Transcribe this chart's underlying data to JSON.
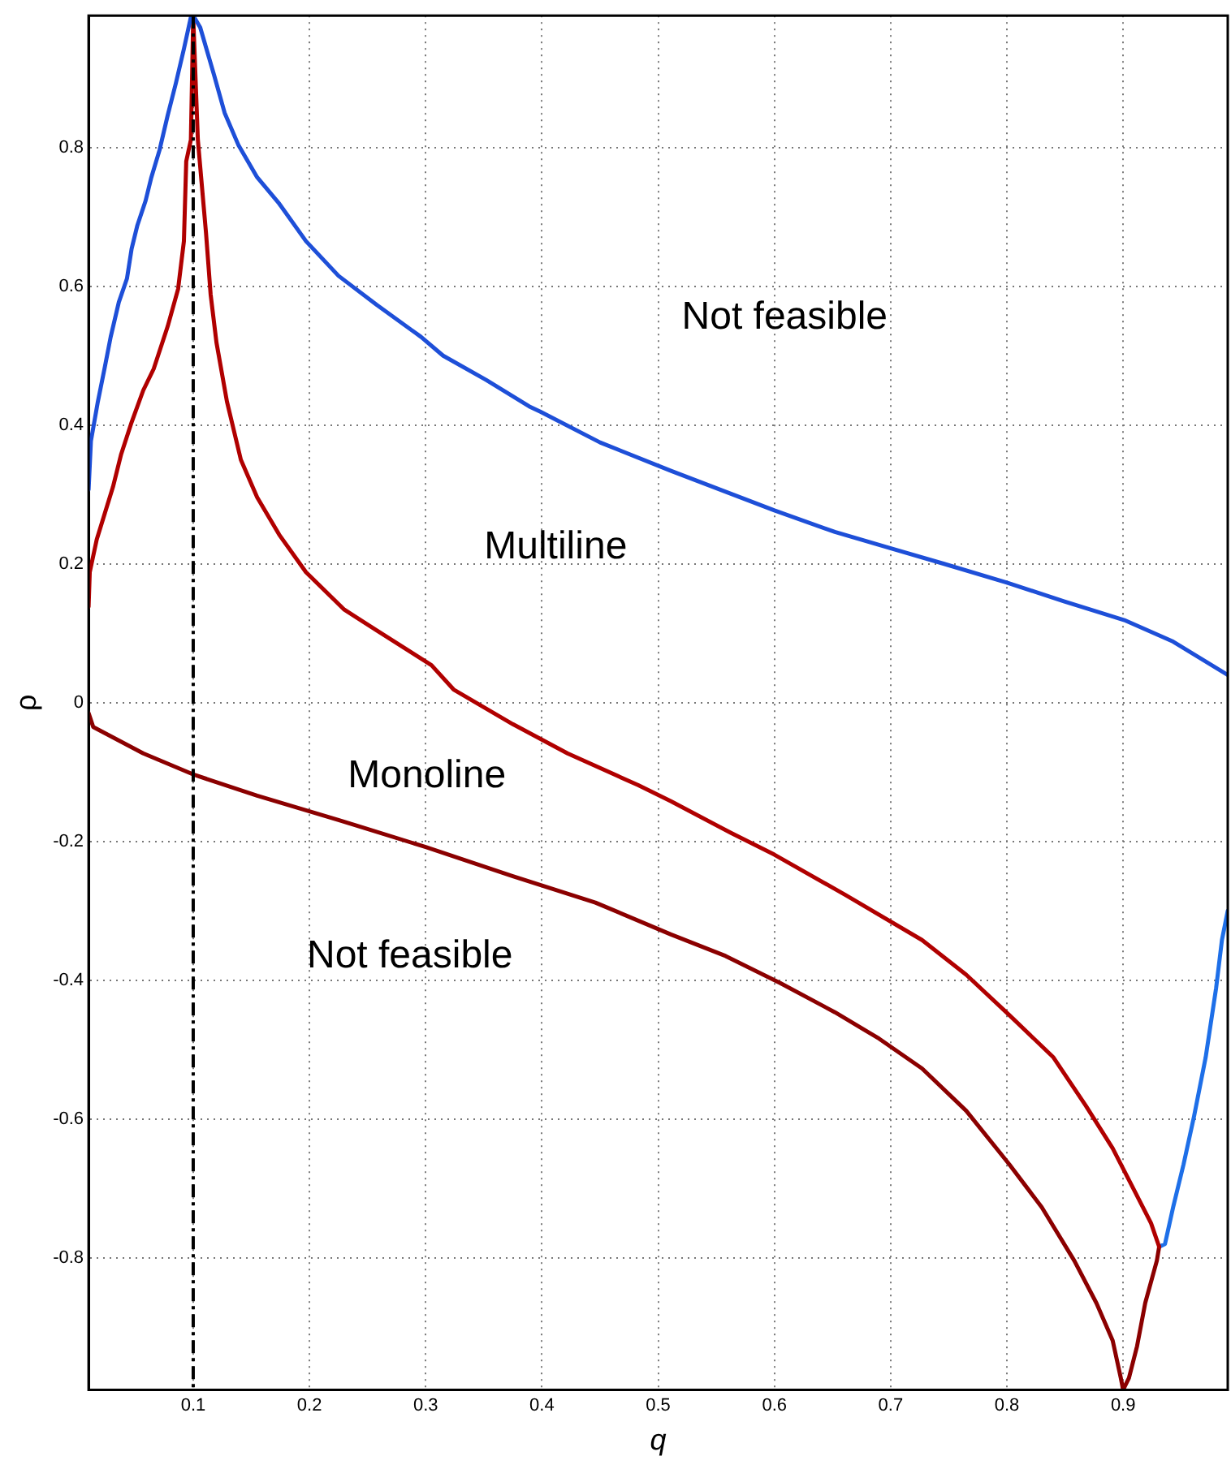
{
  "chart_data": {
    "type": "line",
    "xlabel": "q",
    "ylabel": "ρ",
    "xlim": [
      0.01,
      0.99
    ],
    "ylim": [
      -0.99,
      0.99
    ],
    "xticks": [
      0.1,
      0.2,
      0.3,
      0.4,
      0.5,
      0.6,
      0.7,
      0.8,
      0.9
    ],
    "yticks": [
      -0.8,
      -0.6,
      -0.4,
      -0.2,
      0,
      0.2,
      0.4,
      0.6,
      0.8
    ],
    "grid": true,
    "legend": false,
    "marker": "none",
    "line_style": "solid",
    "ref_lines": [
      {
        "axis": "x",
        "value": 0.1,
        "color": "#000000",
        "line_style": "dashed"
      }
    ],
    "annotations": [
      "Not feasible",
      "Multiline",
      "Monoline",
      "Not feasible"
    ],
    "series": [
      {
        "color": "#1e4fd8",
        "x": [
          0.01,
          0.012,
          0.018,
          0.024,
          0.029,
          0.036,
          0.043,
          0.047,
          0.052,
          0.059,
          0.064,
          0.071,
          0.078,
          0.085,
          0.092,
          0.098,
          0.1,
          0.106,
          0.118,
          0.127,
          0.139,
          0.155,
          0.174,
          0.197,
          0.225,
          0.258,
          0.296,
          0.315,
          0.352,
          0.389,
          0.399,
          0.45,
          0.511,
          0.558,
          0.6,
          0.652,
          0.699,
          0.746,
          0.8,
          0.849,
          0.901,
          0.943,
          0.99
        ],
        "values": [
          0.307,
          0.377,
          0.434,
          0.484,
          0.527,
          0.577,
          0.611,
          0.654,
          0.688,
          0.723,
          0.757,
          0.796,
          0.846,
          0.892,
          0.942,
          0.988,
          0.99,
          0.973,
          0.904,
          0.85,
          0.803,
          0.757,
          0.719,
          0.665,
          0.615,
          0.573,
          0.527,
          0.5,
          0.465,
          0.427,
          0.419,
          0.375,
          0.334,
          0.304,
          0.277,
          0.246,
          0.223,
          0.2,
          0.173,
          0.146,
          0.119,
          0.088,
          0.04
        ]
      },
      {
        "color": "#b00000",
        "x": [
          0.01,
          0.011,
          0.017,
          0.024,
          0.031,
          0.038,
          0.047,
          0.057,
          0.066,
          0.078,
          0.087,
          0.092,
          0.094,
          0.098,
          0.1,
          0.104,
          0.111,
          0.115,
          0.12,
          0.129,
          0.141,
          0.155,
          0.174,
          0.197,
          0.23,
          0.258,
          0.305,
          0.324,
          0.375,
          0.422,
          0.483,
          0.511,
          0.563,
          0.6,
          0.661,
          0.727,
          0.765,
          0.802,
          0.84,
          0.868,
          0.891,
          0.91,
          0.924,
          0.931
        ],
        "values": [
          0.138,
          0.188,
          0.235,
          0.273,
          0.311,
          0.358,
          0.404,
          0.45,
          0.481,
          0.542,
          0.596,
          0.665,
          0.78,
          0.811,
          0.988,
          0.811,
          0.677,
          0.588,
          0.519,
          0.434,
          0.35,
          0.296,
          0.242,
          0.188,
          0.134,
          0.104,
          0.054,
          0.019,
          -0.031,
          -0.073,
          -0.119,
          -0.142,
          -0.188,
          -0.219,
          -0.277,
          -0.342,
          -0.392,
          -0.45,
          -0.511,
          -0.581,
          -0.642,
          -0.704,
          -0.75,
          -0.784
        ]
      },
      {
        "color": "#8b0000",
        "x": [
          0.01,
          0.014,
          0.057,
          0.101,
          0.155,
          0.225,
          0.3,
          0.375,
          0.446,
          0.511,
          0.558,
          0.605,
          0.652,
          0.69,
          0.727,
          0.765,
          0.802,
          0.83,
          0.858,
          0.877,
          0.891,
          0.898,
          0.9,
          0.905,
          0.912,
          0.919,
          0.929,
          0.931
        ],
        "values": [
          -0.015,
          -0.035,
          -0.073,
          -0.104,
          -0.134,
          -0.169,
          -0.208,
          -0.25,
          -0.288,
          -0.334,
          -0.365,
          -0.404,
          -0.446,
          -0.484,
          -0.527,
          -0.588,
          -0.665,
          -0.727,
          -0.804,
          -0.865,
          -0.919,
          -0.973,
          -0.99,
          -0.973,
          -0.927,
          -0.865,
          -0.804,
          -0.784
        ]
      },
      {
        "color": "#1e6fe8",
        "x": [
          0.931,
          0.936,
          0.943,
          0.952,
          0.961,
          0.971,
          0.98,
          0.985,
          0.99
        ],
        "values": [
          -0.784,
          -0.78,
          -0.727,
          -0.665,
          -0.596,
          -0.511,
          -0.411,
          -0.342,
          -0.3
        ]
      }
    ]
  }
}
